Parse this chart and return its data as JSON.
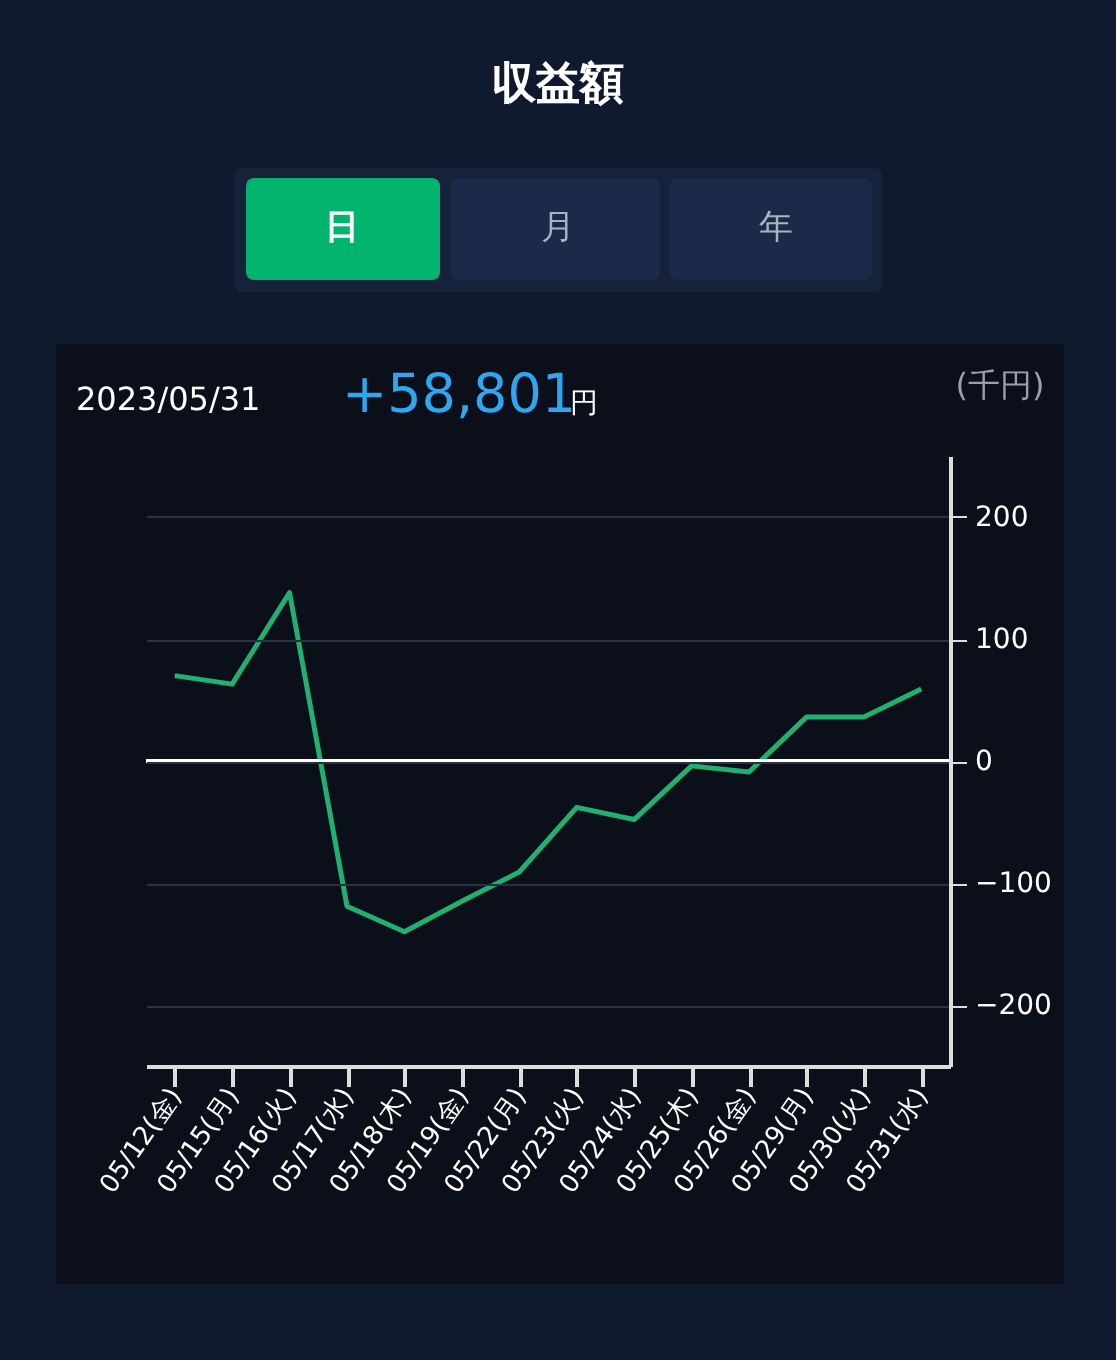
{
  "chart_data": {
    "type": "line",
    "title": "収益額",
    "ylabel": "(千円)",
    "categories": [
      "05/12(金)",
      "05/15(月)",
      "05/16(火)",
      "05/17(水)",
      "05/18(木)",
      "05/19(金)",
      "05/22(月)",
      "05/23(火)",
      "05/24(水)",
      "05/25(木)",
      "05/26(金)",
      "05/29(月)",
      "05/30(火)",
      "05/31(水)"
    ],
    "series": [
      {
        "color": "#22b070",
        "values": [
          70,
          63,
          138,
          -119,
          -140,
          -115,
          -91,
          -38,
          -48,
          -4,
          -9,
          36,
          36,
          59
        ]
      }
    ],
    "ylim": [
      -250,
      250
    ],
    "yticks": [
      -200,
      -100,
      0,
      100,
      200
    ],
    "grid": "y",
    "ref_lines": [
      {
        "axis": "y",
        "value": 0,
        "color": "#ffffff"
      }
    ],
    "annotations": [
      "日",
      "月",
      "年",
      "2023/05/31",
      "+58,801",
      "円"
    ]
  }
}
